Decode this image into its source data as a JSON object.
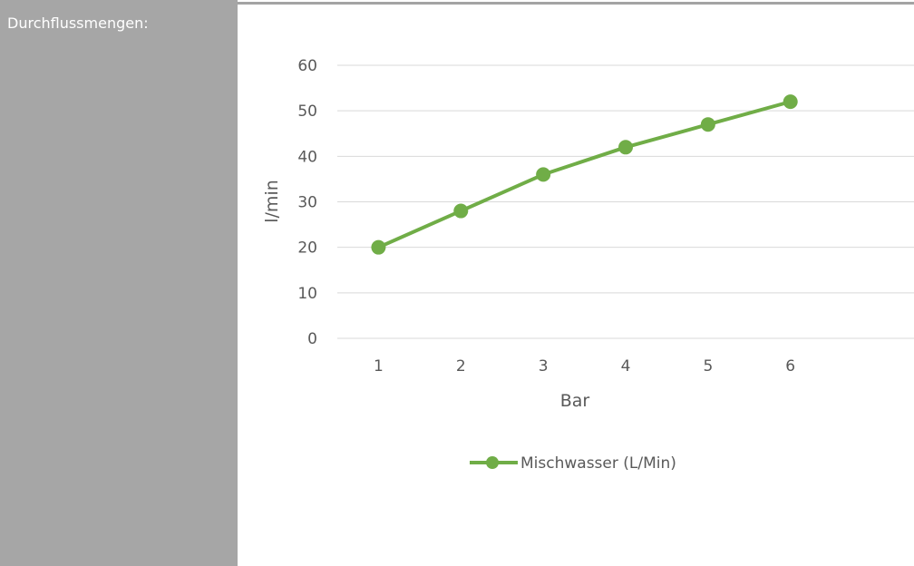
{
  "sidebar": {
    "label": "Durchflussmengen:"
  },
  "colors": {
    "sidebar_bg": "#a6a6a6",
    "series": "#70ad47",
    "grid": "#d9d9d9",
    "text": "#595959"
  },
  "chart_data": {
    "type": "line",
    "title": "",
    "xlabel": "Bar",
    "ylabel": "l/min",
    "categories": [
      "1",
      "2",
      "3",
      "4",
      "5",
      "6"
    ],
    "ylim": [
      0,
      60
    ],
    "yticks": [
      0,
      10,
      20,
      30,
      40,
      50,
      60
    ],
    "grid": true,
    "legend_position": "bottom",
    "series": [
      {
        "name": "Mischwasser (L/Min)",
        "values": [
          20,
          28,
          36,
          42,
          47,
          52
        ],
        "color": "#70ad47",
        "marker": "circle"
      }
    ]
  }
}
